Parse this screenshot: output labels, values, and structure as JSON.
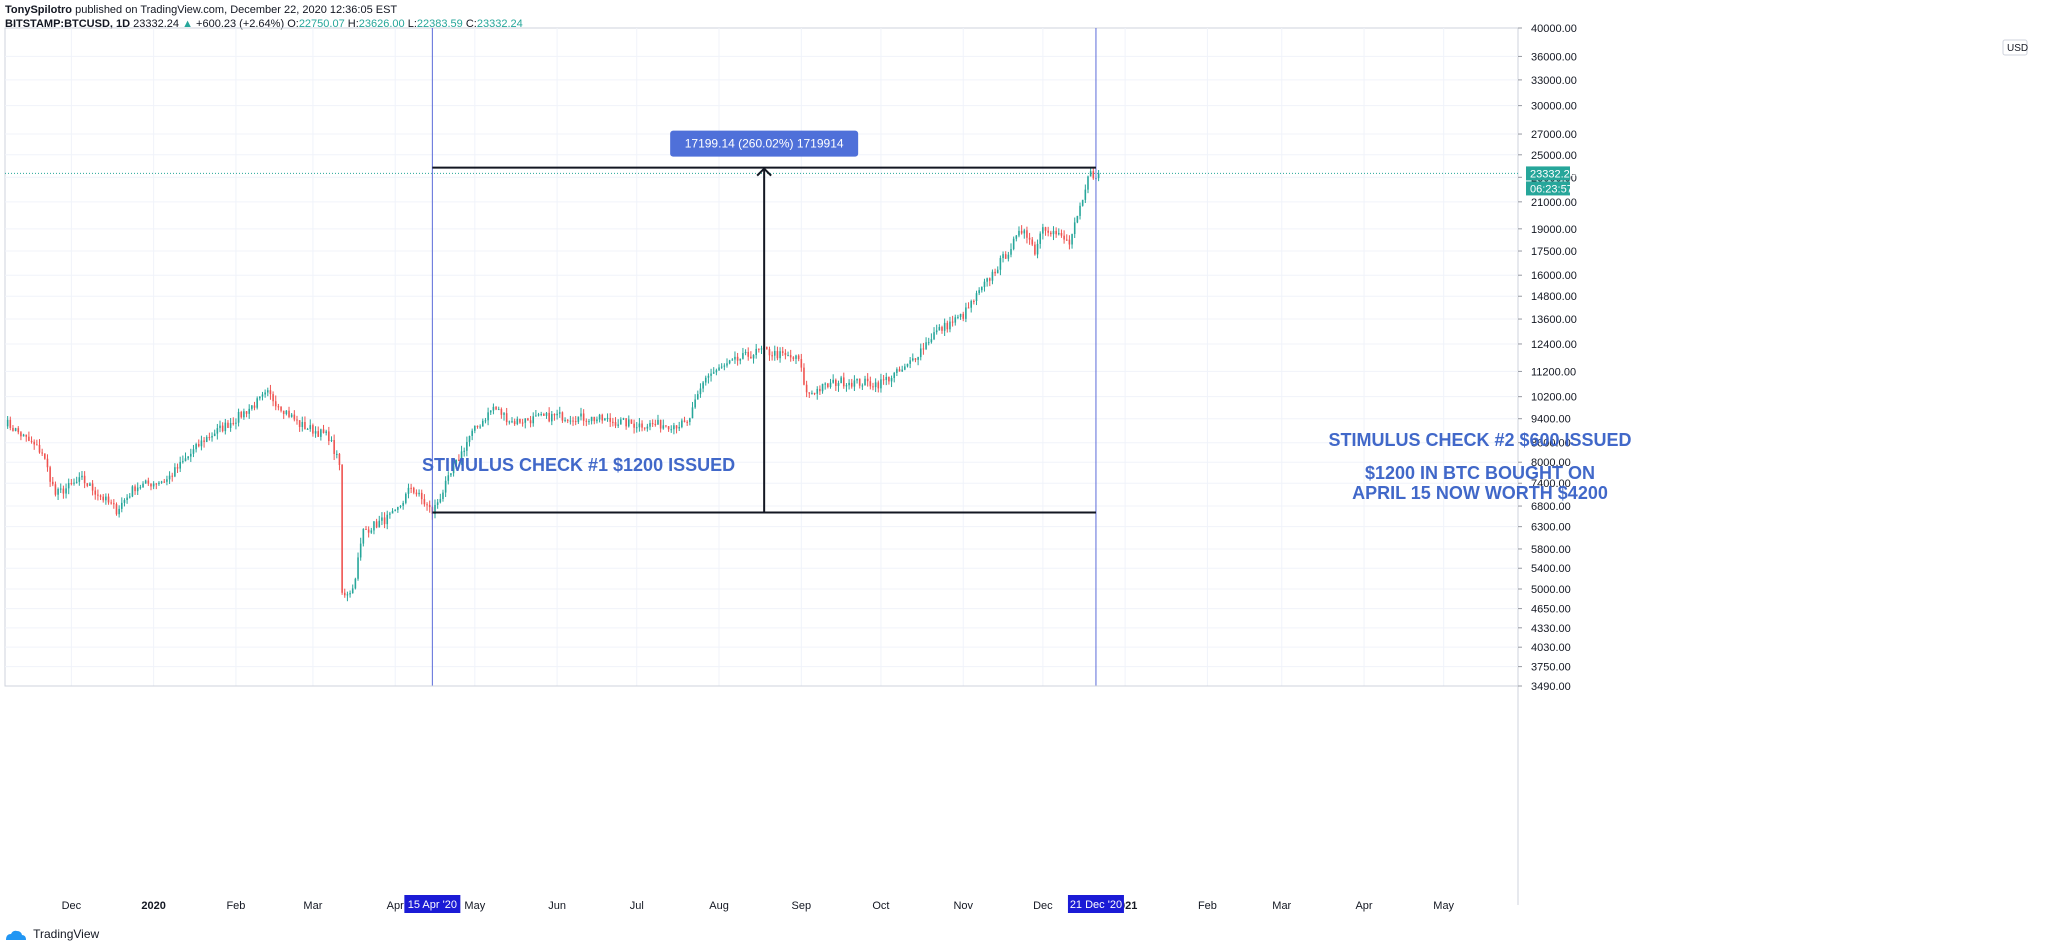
{
  "header": {
    "author": "TonySpilotro",
    "published": "published on TradingView.com, December 22, 2020 12:36:05 EST",
    "symbol": "BITSTAMP:BTCUSD, 1D",
    "last": "23332.24",
    "change": "+600.23 (+2.64%)",
    "open_label": "O:",
    "open": "22750.07",
    "high_label": "H:",
    "high": "23626.00",
    "low_label": "L:",
    "low": "22383.59",
    "close_label": "C:",
    "close": "23332.24"
  },
  "footer": {
    "brand": "TradingView"
  },
  "annotations": {
    "left": "STIMULUS CHECK #1 $1200 ISSUED",
    "right_line1": "STIMULUS CHECK #2 $600 ISSUED",
    "right_line2": "$1200 IN BTC BOUGHT ON",
    "right_line3": "APRIL 15 NOW WORTH $4200"
  },
  "colors": {
    "up": "#26a69a",
    "down": "#ef5350",
    "accent": "#4168c9",
    "vline": "#5b6bd9",
    "date_badge": "#1b1bd6"
  },
  "chart_data": {
    "type": "candlestick",
    "y_scale": "log",
    "ylim": [
      3490,
      40000
    ],
    "currency": "USD",
    "y_ticks": [
      "40000.00",
      "36000.00",
      "33000.00",
      "30000.00",
      "27000.00",
      "25000.00",
      "23000.00",
      "21000.00",
      "19000.00",
      "17500.00",
      "16000.00",
      "14800.00",
      "13600.00",
      "12400.00",
      "11200.00",
      "10200.00",
      "9400.00",
      "8600.00",
      "8000.00",
      "7400.00",
      "6800.00",
      "6300.00",
      "5800.00",
      "5400.00",
      "5000.00",
      "4650.00",
      "4330.00",
      "4030.00",
      "3750.00",
      "3490.00"
    ],
    "x_ticks": [
      {
        "label": "Dec",
        "date": "2019-12-01"
      },
      {
        "label": "2020",
        "date": "2020-01-01"
      },
      {
        "label": "Feb",
        "date": "2020-02-01"
      },
      {
        "label": "Mar",
        "date": "2020-03-01"
      },
      {
        "label": "Apr",
        "date": "2020-04-01"
      },
      {
        "label": "May",
        "date": "2020-05-01"
      },
      {
        "label": "Jun",
        "date": "2020-06-01"
      },
      {
        "label": "Jul",
        "date": "2020-07-01"
      },
      {
        "label": "Aug",
        "date": "2020-08-01"
      },
      {
        "label": "Sep",
        "date": "2020-09-01"
      },
      {
        "label": "Oct",
        "date": "2020-10-01"
      },
      {
        "label": "Nov",
        "date": "2020-11-01"
      },
      {
        "label": "Dec",
        "date": "2020-12-01"
      },
      {
        "label": "2021",
        "date": "2021-01-01"
      },
      {
        "label": "Feb",
        "date": "2021-02-01"
      },
      {
        "label": "Mar",
        "date": "2021-03-01"
      },
      {
        "label": "Apr",
        "date": "2021-04-01"
      },
      {
        "label": "May",
        "date": "2021-05-01"
      }
    ],
    "x_range": [
      "2019-11-06",
      "2021-05-29"
    ],
    "price_path": [
      [
        "2019-11-06",
        9300
      ],
      [
        "2019-11-20",
        8300
      ],
      [
        "2019-11-25",
        7100
      ],
      [
        "2019-12-05",
        7500
      ],
      [
        "2019-12-18",
        6700
      ],
      [
        "2019-12-25",
        7300
      ],
      [
        "2020-01-06",
        7500
      ],
      [
        "2020-01-20",
        8700
      ],
      [
        "2020-02-01",
        9400
      ],
      [
        "2020-02-13",
        10300
      ],
      [
        "2020-02-25",
        9200
      ],
      [
        "2020-03-07",
        8800
      ],
      [
        "2020-03-11",
        7900
      ],
      [
        "2020-03-12",
        4900
      ],
      [
        "2020-03-16",
        5000
      ],
      [
        "2020-03-20",
        6200
      ],
      [
        "2020-04-01",
        6600
      ],
      [
        "2020-04-07",
        7300
      ],
      [
        "2020-04-15",
        6640
      ],
      [
        "2020-04-29",
        8800
      ],
      [
        "2020-05-08",
        9800
      ],
      [
        "2020-05-15",
        9300
      ],
      [
        "2020-06-01",
        9500
      ],
      [
        "2020-06-15",
        9400
      ],
      [
        "2020-07-01",
        9200
      ],
      [
        "2020-07-20",
        9200
      ],
      [
        "2020-07-27",
        11000
      ],
      [
        "2020-08-10",
        11800
      ],
      [
        "2020-08-17",
        12100
      ],
      [
        "2020-08-31",
        11700
      ],
      [
        "2020-09-03",
        10300
      ],
      [
        "2020-09-15",
        10800
      ],
      [
        "2020-09-30",
        10700
      ],
      [
        "2020-10-10",
        11300
      ],
      [
        "2020-10-21",
        12900
      ],
      [
        "2020-11-01",
        13800
      ],
      [
        "2020-11-09",
        15400
      ],
      [
        "2020-11-24",
        19100
      ],
      [
        "2020-11-28",
        17500
      ],
      [
        "2020-12-01",
        19300
      ],
      [
        "2020-12-11",
        18000
      ],
      [
        "2020-12-16",
        21000
      ],
      [
        "2020-12-19",
        23800
      ],
      [
        "2020-12-21",
        22750
      ],
      [
        "2020-12-22",
        23332
      ]
    ],
    "last_price": "23332.24",
    "countdown": "06:23:57",
    "vertical_markers": [
      {
        "date": "2020-04-15",
        "label": "15 Apr '20"
      },
      {
        "date": "2020-12-21",
        "label": "21 Dec '20"
      }
    ],
    "measure": {
      "from_date": "2020-04-15",
      "to_date": "2020-12-21",
      "low": 6640,
      "high": 23840,
      "label": "17199.14 (260.02%) 1719914"
    }
  }
}
